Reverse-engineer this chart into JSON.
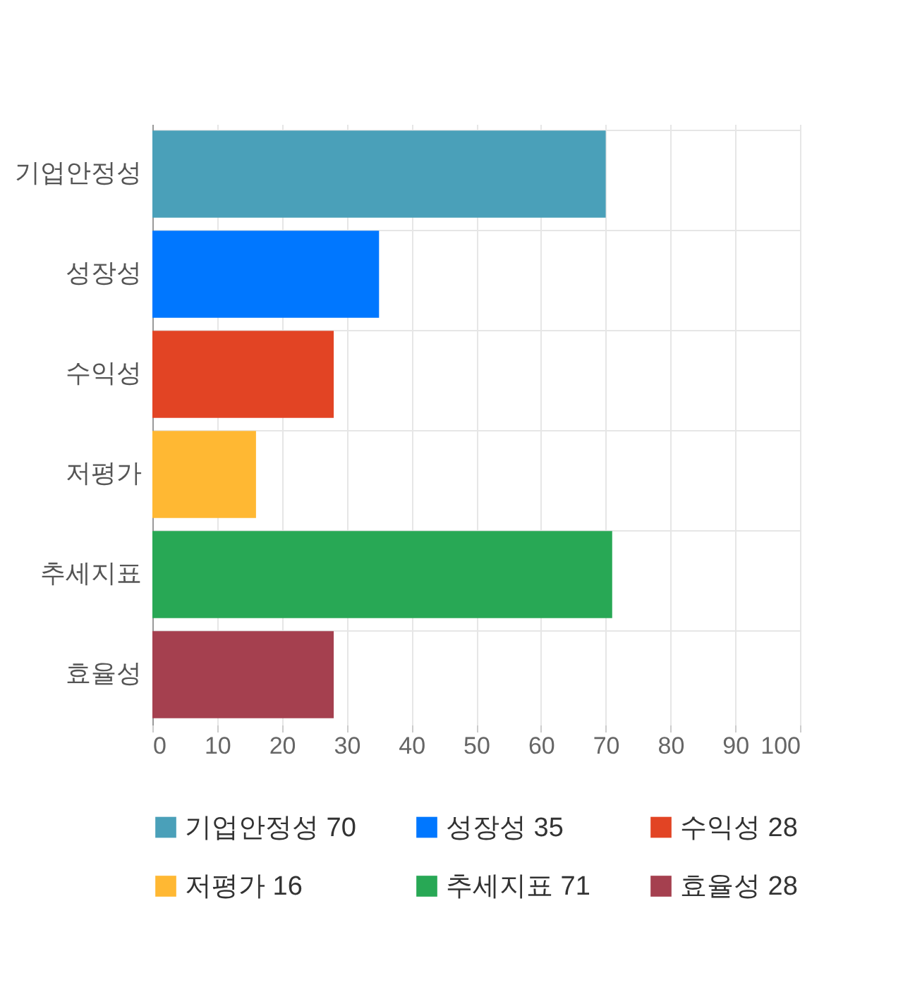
{
  "chart_data": {
    "type": "bar",
    "orientation": "horizontal",
    "categories": [
      "기업안정성",
      "성장성",
      "수익성",
      "저평가",
      "추세지표",
      "효율성"
    ],
    "series": [
      {
        "name": "기업안정성 70",
        "color": "#4aa0b9",
        "values": [
          70,
          null,
          null,
          null,
          null,
          null
        ]
      },
      {
        "name": "성장성 35",
        "color": "#0077ff",
        "values": [
          null,
          35,
          null,
          null,
          null,
          null
        ]
      },
      {
        "name": "수익성 28",
        "color": "#e24424",
        "values": [
          null,
          null,
          28,
          null,
          null,
          null
        ]
      },
      {
        "name": "저평가 16",
        "color": "#ffb833",
        "values": [
          null,
          null,
          null,
          16,
          null,
          null
        ]
      },
      {
        "name": "추세지표 71",
        "color": "#28a855",
        "values": [
          null,
          null,
          null,
          null,
          71,
          null
        ]
      },
      {
        "name": "효율성 28",
        "color": "#a5404f",
        "values": [
          null,
          null,
          null,
          null,
          null,
          28
        ]
      }
    ],
    "xlim": [
      0,
      100
    ],
    "xticks": [
      0,
      10,
      20,
      30,
      40,
      50,
      60,
      70,
      80,
      90,
      100
    ],
    "grid": true,
    "legend": "bottom"
  }
}
